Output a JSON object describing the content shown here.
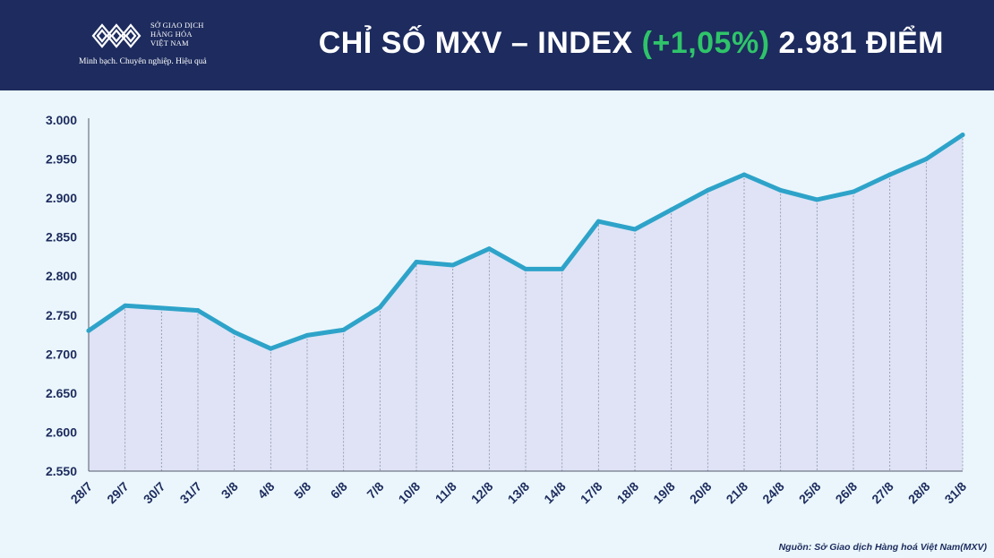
{
  "header": {
    "logo_lines": [
      "SỞ GIAO DỊCH",
      "HÀNG HÓA",
      "VIỆT NAM"
    ],
    "slogan": "Minh bạch. Chuyên nghiệp. Hiệu quả",
    "title_main": "CHỈ SỐ MXV – INDEX ",
    "title_change": "(+1,05%)",
    "title_value": " 2.981 ĐIỂM",
    "background_color": "#1d2b5e",
    "change_color": "#2fc46a"
  },
  "chart_data": {
    "type": "area",
    "title": "CHỈ SỐ MXV – INDEX (+1,05%) 2.981 ĐIỂM",
    "categories": [
      "28/7",
      "29/7",
      "30/7",
      "31/7",
      "3/8",
      "4/8",
      "5/8",
      "6/8",
      "7/8",
      "10/8",
      "11/8",
      "12/8",
      "13/8",
      "14/8",
      "17/8",
      "18/8",
      "19/8",
      "20/8",
      "21/8",
      "24/8",
      "25/8",
      "26/8",
      "27/8",
      "28/8",
      "31/8"
    ],
    "values": [
      2730,
      2762,
      2759,
      2756,
      2728,
      2707,
      2724,
      2731,
      2760,
      2818,
      2814,
      2835,
      2809,
      2809,
      2870,
      2860,
      2885,
      2910,
      2930,
      2910,
      2898,
      2908,
      2930,
      2950,
      2981
    ],
    "ylim": [
      2550,
      3000
    ],
    "yticks": [
      "3.000",
      "2.950",
      "2.900",
      "2.850",
      "2.800",
      "2.750",
      "2.700",
      "2.650",
      "2.600",
      "2.550"
    ],
    "ytick_values": [
      3000,
      2950,
      2900,
      2850,
      2800,
      2750,
      2700,
      2650,
      2600,
      2550
    ],
    "grid": "vertical-dashed",
    "line_color": "#2ea3c9",
    "fill_color": "#dfe3f5"
  },
  "footer": {
    "source": "Nguồn: Sở Giao dịch Hàng hoá Việt Nam(MXV)"
  }
}
